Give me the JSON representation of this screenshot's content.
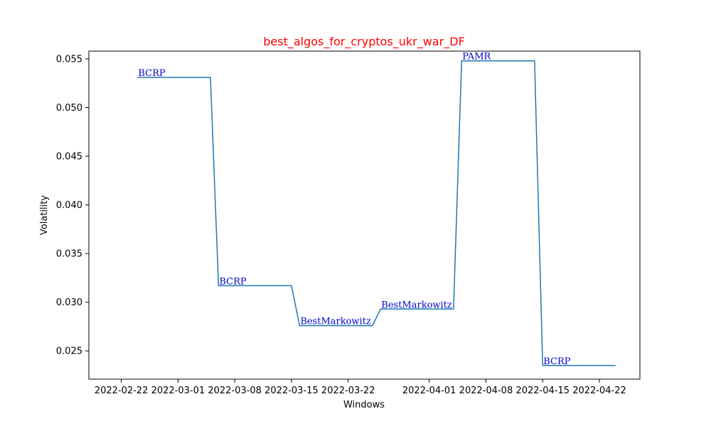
{
  "chart_data": {
    "type": "line",
    "title": "best_algos_for_cryptos_ukr_war_DF",
    "title_color": "#ff0000",
    "xlabel": "Windows",
    "ylabel": "Volatility",
    "line_color": "#1f77b4",
    "annotation_color": "#0000cc",
    "xlim": [
      "2022-02-18",
      "2022-04-27"
    ],
    "ylim": [
      0.0221,
      0.0558
    ],
    "grid": false,
    "x_ticks": [
      "2022-02-22",
      "2022-03-01",
      "2022-03-08",
      "2022-03-15",
      "2022-03-22",
      "2022-04-01",
      "2022-04-08",
      "2022-04-15",
      "2022-04-22"
    ],
    "y_ticks": [
      "0.025",
      "0.030",
      "0.035",
      "0.040",
      "0.045",
      "0.050",
      "0.055"
    ],
    "series": [
      {
        "points": [
          {
            "x": "2022-02-24",
            "y": 0.0531
          },
          {
            "x": "2022-03-05",
            "y": 0.0531
          },
          {
            "x": "2022-03-06",
            "y": 0.0317
          },
          {
            "x": "2022-03-15",
            "y": 0.0317
          },
          {
            "x": "2022-03-16",
            "y": 0.0276
          },
          {
            "x": "2022-03-25",
            "y": 0.0276
          },
          {
            "x": "2022-03-26",
            "y": 0.0293
          },
          {
            "x": "2022-04-04",
            "y": 0.0293
          },
          {
            "x": "2022-04-05",
            "y": 0.0548
          },
          {
            "x": "2022-04-14",
            "y": 0.0548
          },
          {
            "x": "2022-04-15",
            "y": 0.0235
          },
          {
            "x": "2022-04-24",
            "y": 0.0235
          }
        ]
      }
    ],
    "annotations": [
      {
        "text": "BCRP",
        "x": "2022-02-24",
        "y": 0.0531
      },
      {
        "text": "BCRP",
        "x": "2022-03-06",
        "y": 0.0317
      },
      {
        "text": "BestMarkowitz",
        "x": "2022-03-16",
        "y": 0.0276
      },
      {
        "text": "BestMarkowitz",
        "x": "2022-03-26",
        "y": 0.0293
      },
      {
        "text": "PAMR",
        "x": "2022-04-05",
        "y": 0.0548
      },
      {
        "text": "BCRP",
        "x": "2022-04-15",
        "y": 0.0235
      }
    ]
  }
}
